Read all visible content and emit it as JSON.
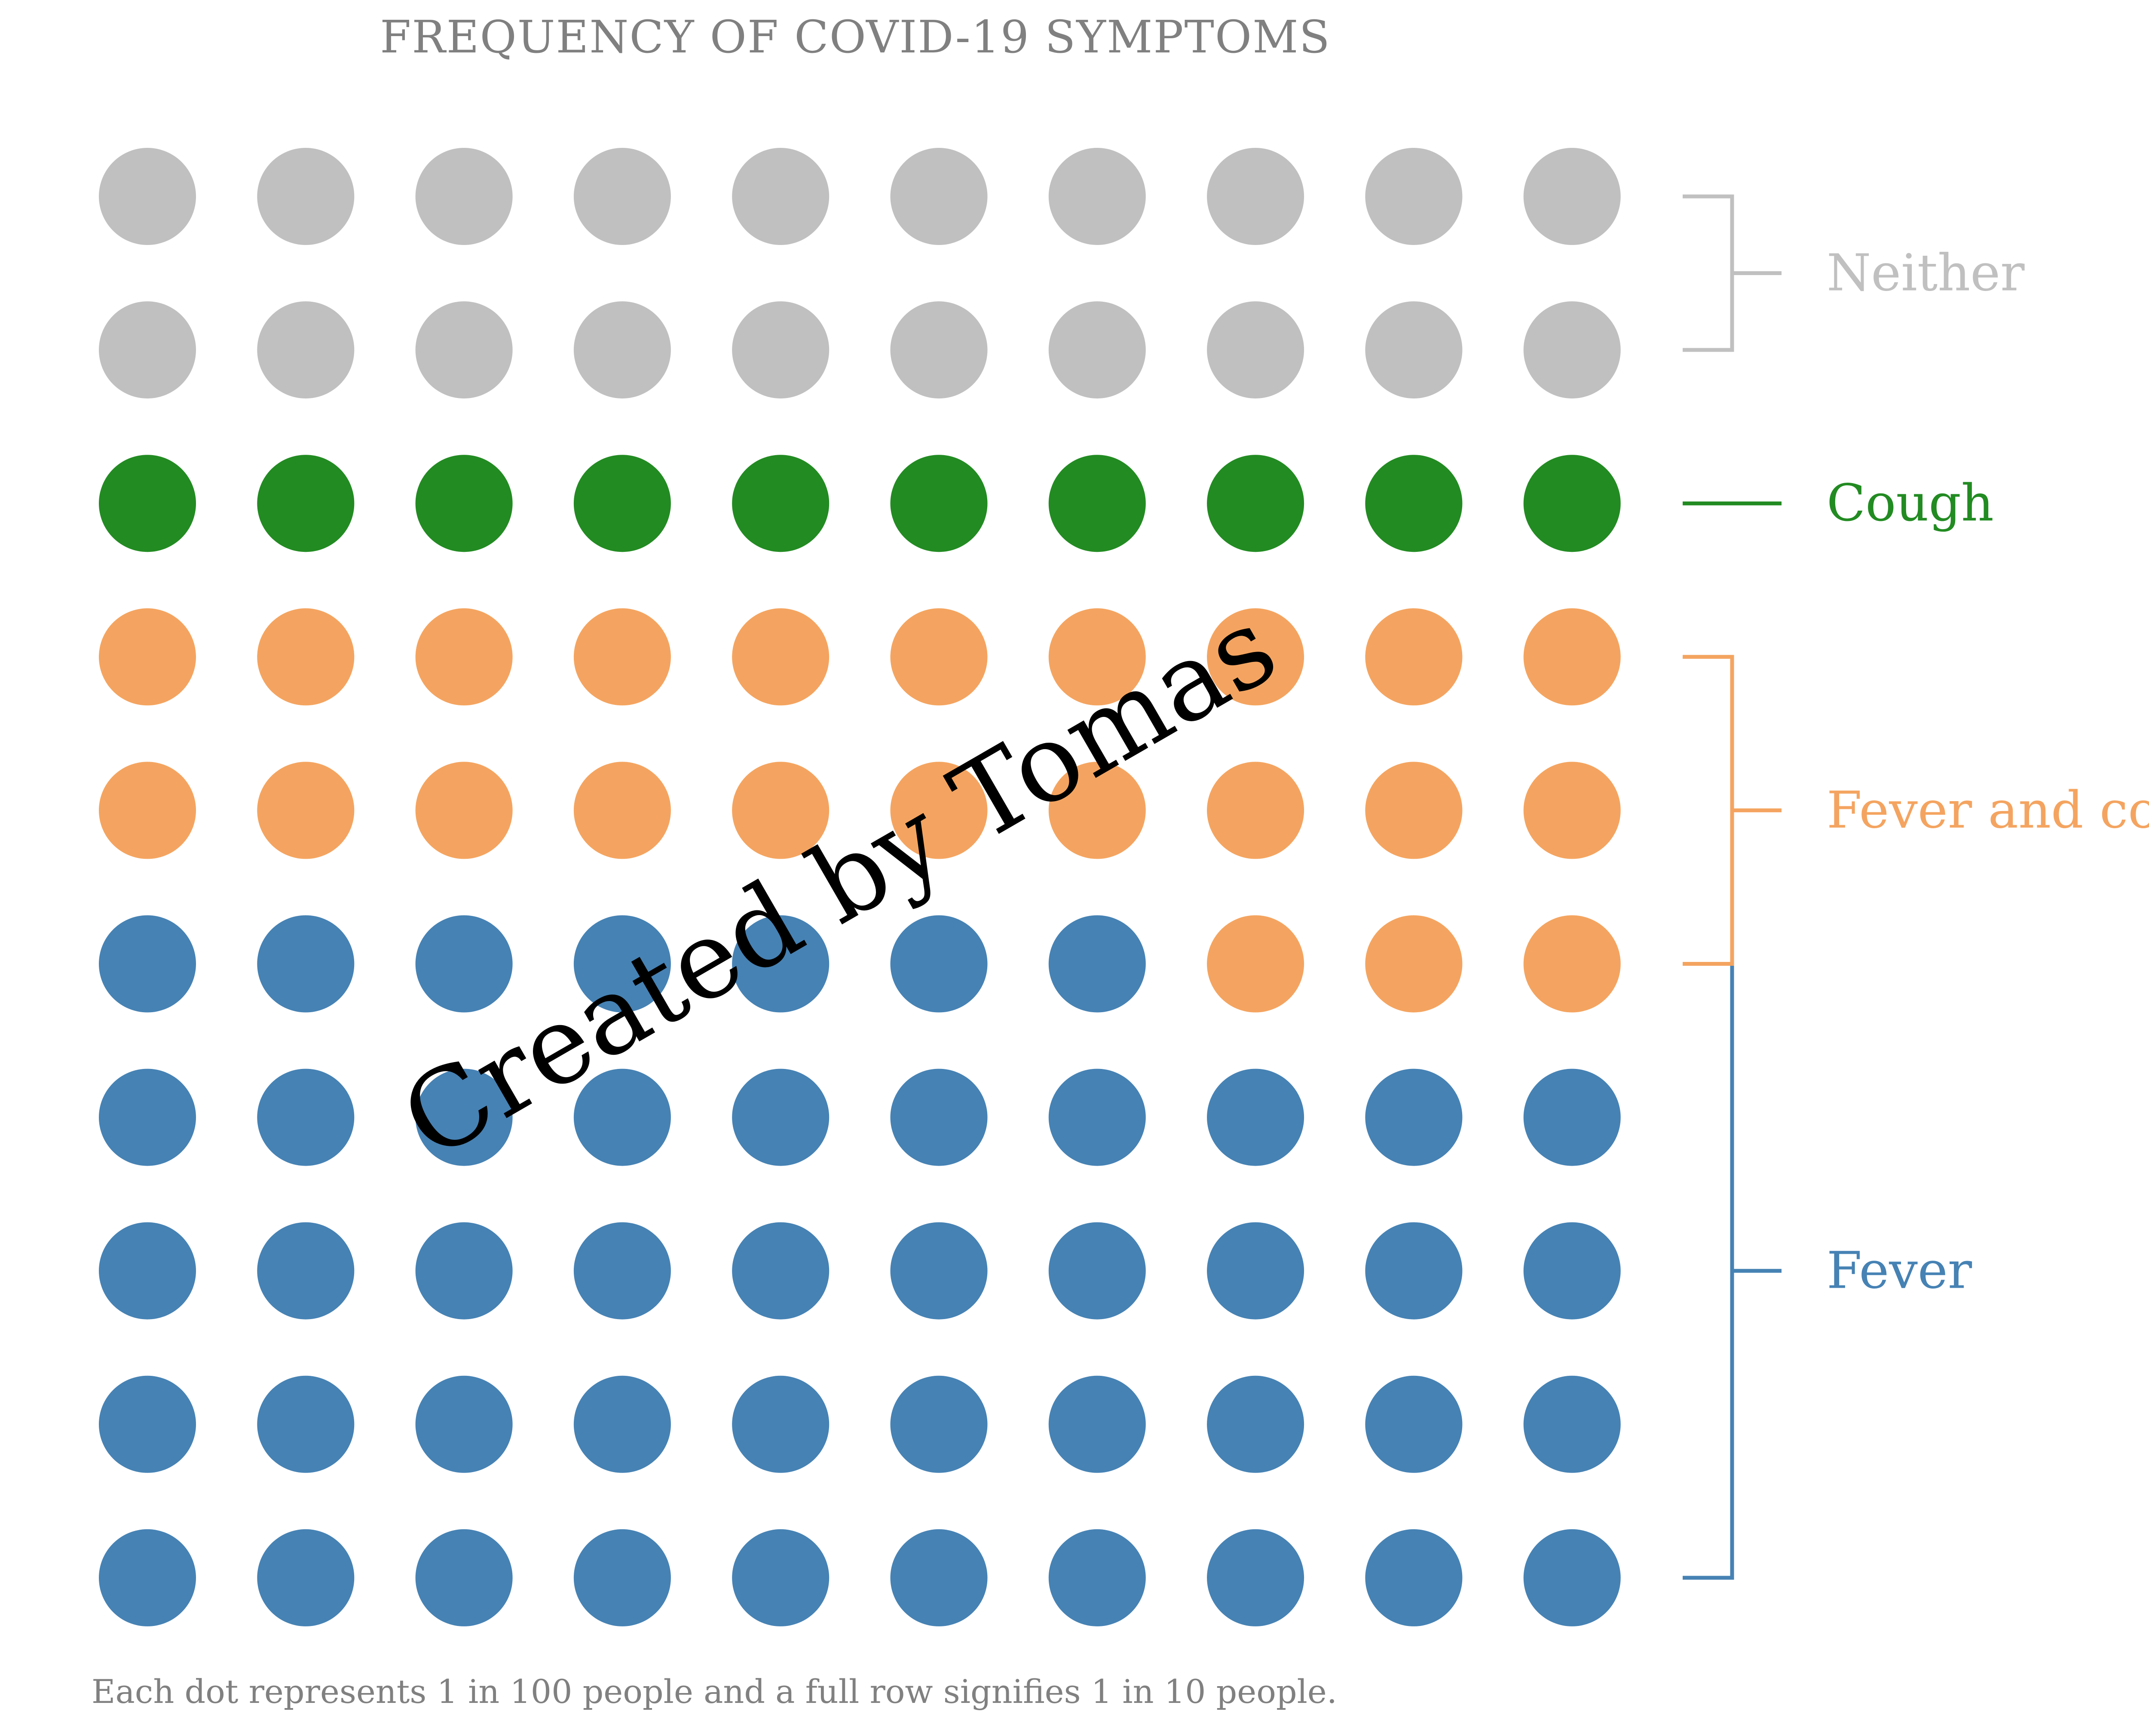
{
  "chart_data": {
    "type": "waffle",
    "title": "FREQUENCY OF COVID-19 SYMPTOMS",
    "caption": "Each dot represents 1 in 100 people and a full row signifies 1 in 10 people.",
    "watermark": "Created by Tomas",
    "grid": {
      "rows": 10,
      "columns": 10
    },
    "fill_order": "bottom row first, each row filled left-to-right",
    "series": [
      {
        "name": "Fever",
        "value": 47,
        "color": "#4682b4"
      },
      {
        "name": "Fever and cough",
        "value": 23,
        "color": "#f4a460"
      },
      {
        "name": "Cough",
        "value": 10,
        "color": "#228b22"
      },
      {
        "name": "Neither",
        "value": 20,
        "color": "#c0c0c0"
      }
    ],
    "legend_placement": "right, bracketed labels"
  }
}
